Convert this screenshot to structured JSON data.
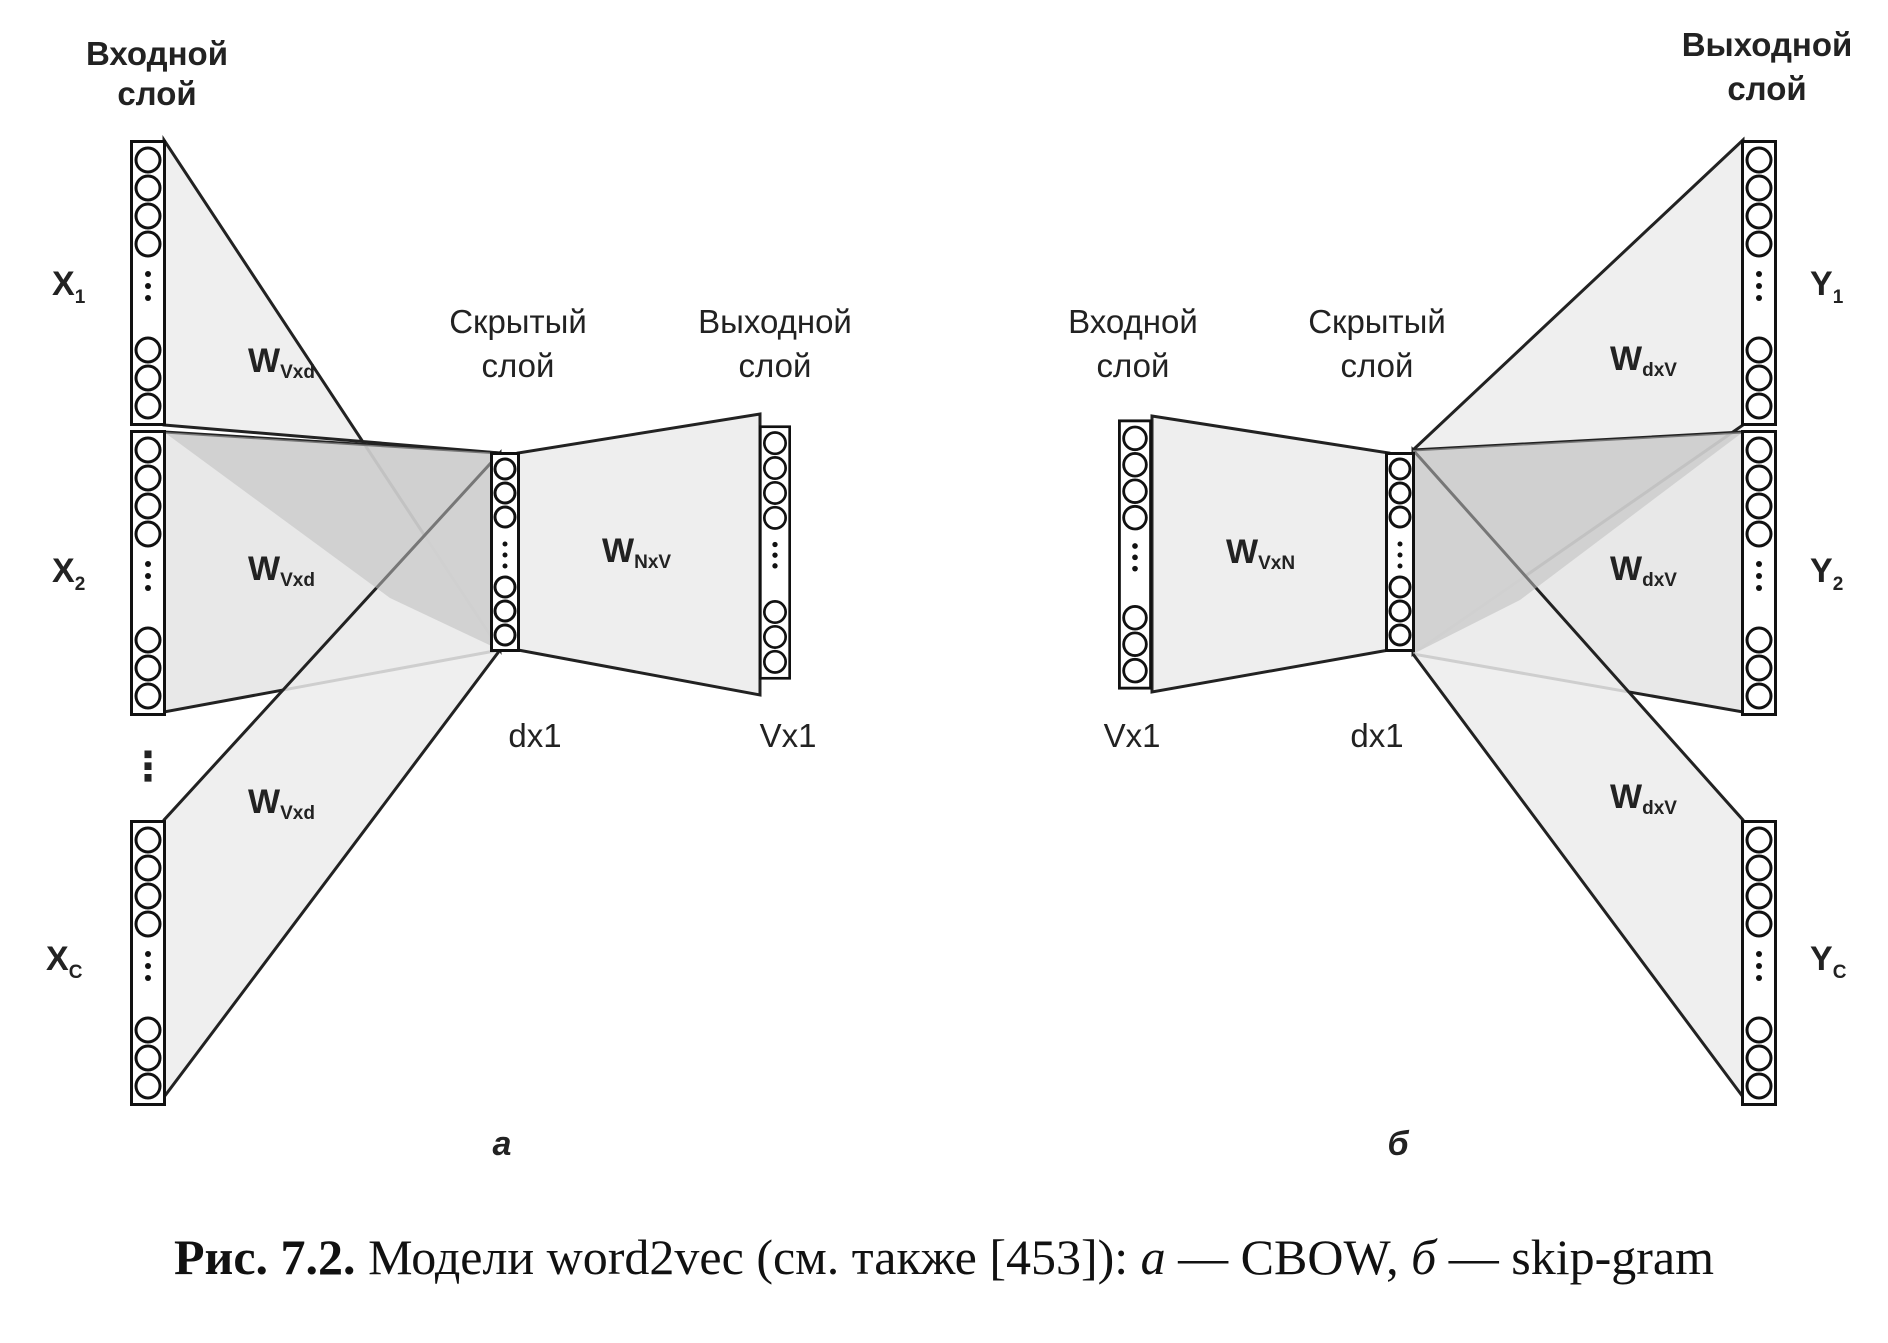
{
  "panel_a": {
    "input_layer_label": [
      "Входной",
      "слой"
    ],
    "hidden_layer_label": [
      "Скрытый",
      "слой"
    ],
    "output_layer_label": [
      "Выходной",
      "слой"
    ],
    "inputs": [
      {
        "base": "X",
        "sub": "1"
      },
      {
        "base": "X",
        "sub": "2"
      },
      {
        "base": "X",
        "sub": "C"
      }
    ],
    "input_weights": [
      {
        "base": "W",
        "sub": "Vxd"
      },
      {
        "base": "W",
        "sub": "Vxd"
      },
      {
        "base": "W",
        "sub": "Vxd"
      }
    ],
    "output_weight": {
      "base": "W",
      "sub": "NxV"
    },
    "hidden_dim": "dx1",
    "output_dim": "Vx1",
    "between_dots": "⋮",
    "letter": "а"
  },
  "panel_b": {
    "input_layer_label": [
      "Входной",
      "слой"
    ],
    "hidden_layer_label": [
      "Скрытый",
      "слой"
    ],
    "output_layer_label": [
      "Выходной",
      "слой"
    ],
    "outputs": [
      {
        "base": "Y",
        "sub": "1"
      },
      {
        "base": "Y",
        "sub": "2"
      },
      {
        "base": "Y",
        "sub": "C"
      }
    ],
    "input_weight": {
      "base": "W",
      "sub": "VxN"
    },
    "output_weights": [
      {
        "base": "W",
        "sub": "dxV"
      },
      {
        "base": "W",
        "sub": "dxV"
      },
      {
        "base": "W",
        "sub": "dxV"
      }
    ],
    "input_dim": "Vx1",
    "hidden_dim": "dx1",
    "letter": "б"
  },
  "caption": {
    "label": "Рис. 7.2.",
    "text_start": " Модели word2vec (см. также [453]): ",
    "a_letter": "а",
    "a_text": " — CBOW, ",
    "b_letter": "б",
    "b_text": " — skip-gram"
  }
}
